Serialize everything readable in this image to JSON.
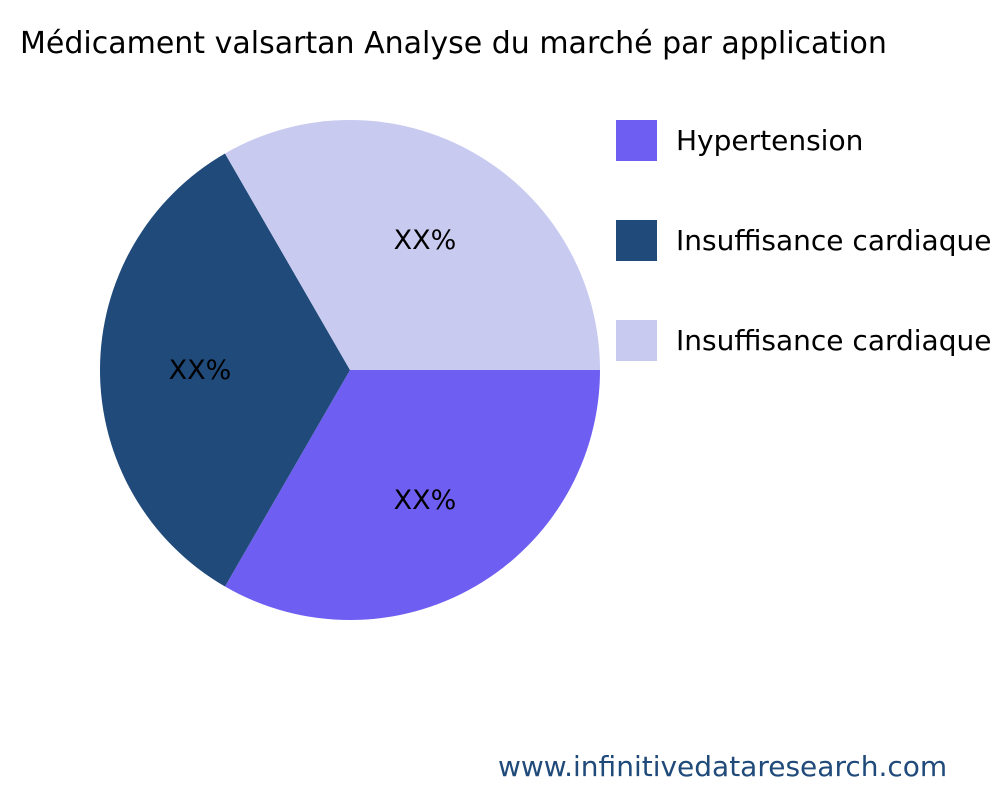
{
  "chart_data": {
    "type": "pie",
    "title": "Médicament valsartan Analyse du marché par application",
    "slices": [
      {
        "name": "Hypertension",
        "value": 33.33,
        "label": "XX%",
        "color": "#6e5ff2"
      },
      {
        "name": "Insuffisance cardiaque",
        "value": 33.33,
        "label": "XX%",
        "color": "#1f4a7a"
      },
      {
        "name": "Insuffisance cardiaque",
        "value": 33.33,
        "label": "XX%",
        "color": "#c9caf0"
      }
    ],
    "legend_position": "right"
  },
  "footer": {
    "source": "www.infinitivedataresearch.com"
  }
}
